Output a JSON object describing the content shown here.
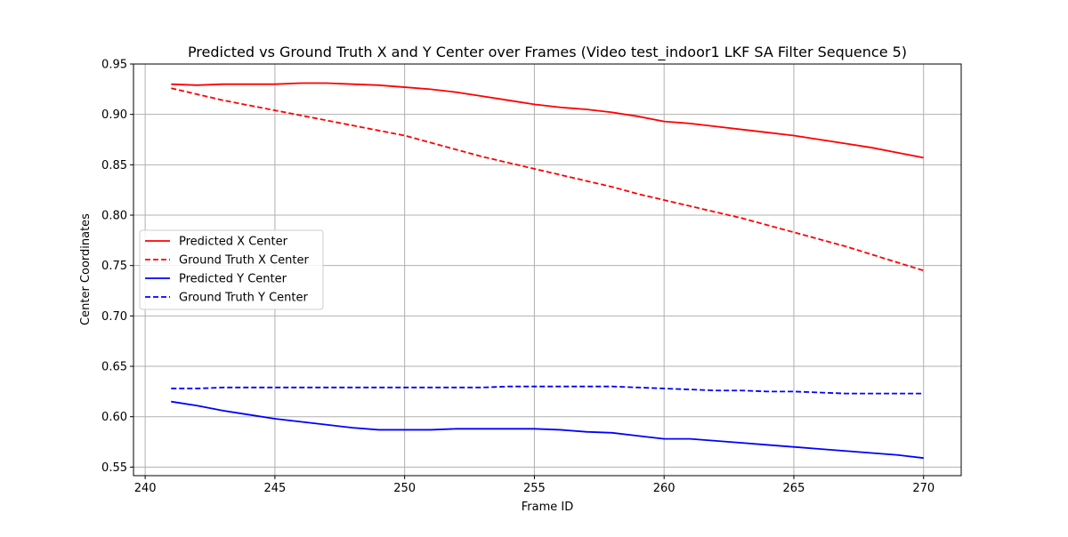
{
  "chart_data": {
    "type": "line",
    "title": "Predicted vs Ground Truth X and Y Center over Frames (Video test_indoor1 LKF SA Filter Sequence 5)",
    "xlabel": "Frame ID",
    "ylabel": "Center Coordinates",
    "xlim": [
      239.55,
      271.45
    ],
    "ylim": [
      0.5415,
      0.95
    ],
    "xticks": [
      240,
      245,
      250,
      255,
      260,
      265,
      270
    ],
    "xtick_labels": [
      "240",
      "245",
      "250",
      "255",
      "260",
      "265",
      "270"
    ],
    "yticks": [
      0.55,
      0.6,
      0.65,
      0.7,
      0.75,
      0.8,
      0.85,
      0.9,
      0.95
    ],
    "ytick_labels": [
      "0.55",
      "0.60",
      "0.65",
      "0.70",
      "0.75",
      "0.80",
      "0.85",
      "0.90",
      "0.95"
    ],
    "grid": true,
    "legend_position": "center-left",
    "x": [
      241,
      242,
      243,
      244,
      245,
      246,
      247,
      248,
      249,
      250,
      251,
      252,
      253,
      254,
      255,
      256,
      257,
      258,
      259,
      260,
      261,
      262,
      263,
      264,
      265,
      266,
      267,
      268,
      269,
      270
    ],
    "series": [
      {
        "name": "Predicted X Center",
        "color": "#ff0000",
        "dashed": false,
        "values": [
          0.93,
          0.929,
          0.93,
          0.93,
          0.93,
          0.931,
          0.931,
          0.93,
          0.929,
          0.927,
          0.925,
          0.922,
          0.918,
          0.914,
          0.91,
          0.907,
          0.905,
          0.902,
          0.898,
          0.893,
          0.891,
          0.888,
          0.885,
          0.882,
          0.879,
          0.875,
          0.871,
          0.867,
          0.862,
          0.857
        ]
      },
      {
        "name": "Ground Truth X Center",
        "color": "#ff0000",
        "dashed": true,
        "values": [
          0.926,
          0.92,
          0.914,
          0.909,
          0.904,
          0.899,
          0.894,
          0.889,
          0.884,
          0.879,
          0.872,
          0.865,
          0.858,
          0.852,
          0.846,
          0.84,
          0.834,
          0.828,
          0.821,
          0.815,
          0.809,
          0.803,
          0.797,
          0.79,
          0.783,
          0.776,
          0.769,
          0.761,
          0.753,
          0.745
        ]
      },
      {
        "name": "Predicted Y Center",
        "color": "#0000ff",
        "dashed": false,
        "values": [
          0.615,
          0.611,
          0.606,
          0.602,
          0.598,
          0.595,
          0.592,
          0.589,
          0.587,
          0.587,
          0.587,
          0.588,
          0.588,
          0.588,
          0.588,
          0.587,
          0.585,
          0.584,
          0.581,
          0.578,
          0.578,
          0.576,
          0.574,
          0.572,
          0.57,
          0.568,
          0.566,
          0.564,
          0.562,
          0.559
        ]
      },
      {
        "name": "Ground Truth Y Center",
        "color": "#0000ff",
        "dashed": true,
        "values": [
          0.628,
          0.628,
          0.629,
          0.629,
          0.629,
          0.629,
          0.629,
          0.629,
          0.629,
          0.629,
          0.629,
          0.629,
          0.629,
          0.63,
          0.63,
          0.63,
          0.63,
          0.63,
          0.629,
          0.628,
          0.627,
          0.626,
          0.626,
          0.625,
          0.625,
          0.624,
          0.623,
          0.623,
          0.623,
          0.623
        ]
      }
    ]
  }
}
